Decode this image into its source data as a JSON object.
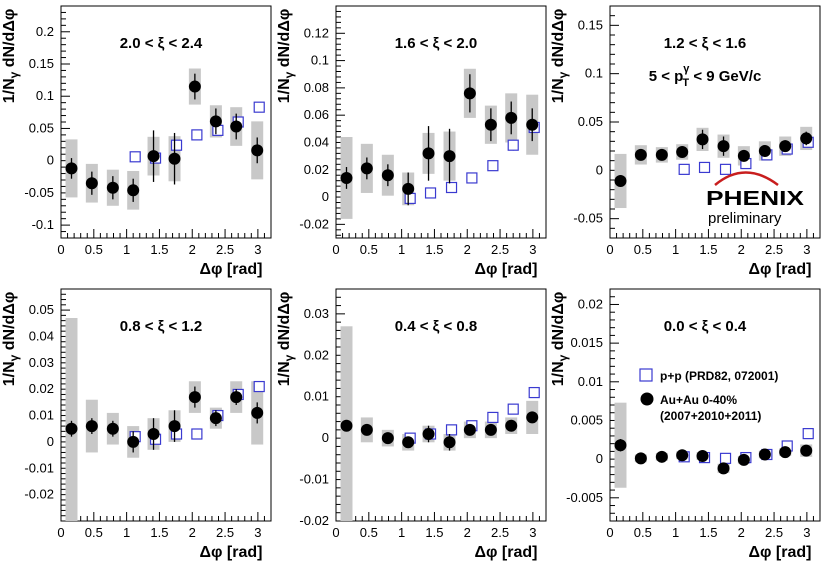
{
  "figure": {
    "logo_text": "PHENIX",
    "logo_sub": "preliminary"
  },
  "legend": {
    "pp_label": "p+p (PRD82, 072001)",
    "auau_label_line1": "Au+Au 0-40%",
    "auau_label_line2": "(2007+2010+2011)"
  },
  "chart_data": [
    {
      "type": "scatter",
      "title": "2.0 < ξ < 2.4",
      "xlabel": "Δφ [rad]",
      "ylabel": "1/Nγ dN/dΔφ",
      "xlim": [
        0,
        3.2
      ],
      "ylim": [
        -0.12,
        0.24
      ],
      "xticks": [
        0,
        0.5,
        1,
        1.5,
        2,
        2.5,
        3
      ],
      "yticks": [
        -0.1,
        -0.05,
        0,
        0.05,
        0.1,
        0.15,
        0.2
      ],
      "ytick_labels": [
        "-0.1",
        "-0.05",
        "0",
        "0.05",
        "0.1",
        "0.15",
        "0.2"
      ],
      "series": [
        {
          "name": "p+p (PRD82, 072001)",
          "marker": "open-square",
          "color": "#3a3ad0",
          "x": [
            1.1,
            1.41,
            1.73,
            2.04,
            2.36,
            2.67,
            2.99
          ],
          "y": [
            0.006,
            0.004,
            0.024,
            0.04,
            0.047,
            0.06,
            0.083
          ],
          "err": [
            0.004,
            0.004,
            0.004,
            0.004,
            0.005,
            0.006,
            0.006
          ]
        },
        {
          "name": "Au+Au 0-40%",
          "marker": "filled-circle",
          "color": "#000000",
          "x": [
            0.16,
            0.47,
            0.79,
            1.1,
            1.41,
            1.73,
            2.04,
            2.36,
            2.67,
            2.99
          ],
          "y": [
            -0.012,
            -0.035,
            -0.042,
            -0.046,
            0.007,
            0.003,
            0.115,
            0.061,
            0.053,
            0.016
          ],
          "err": [
            0.016,
            0.018,
            0.018,
            0.018,
            0.04,
            0.04,
            0.02,
            0.02,
            0.02,
            0.02
          ],
          "sys": [
            0.045,
            0.03,
            0.028,
            0.03,
            0.03,
            0.035,
            0.028,
            0.025,
            0.03,
            0.045
          ]
        }
      ]
    },
    {
      "type": "scatter",
      "title": "1.6 < ξ < 2.0",
      "xlabel": "Δφ [rad]",
      "ylabel": "1/Nγ dN/dΔφ",
      "xlim": [
        0,
        3.2
      ],
      "ylim": [
        -0.03,
        0.14
      ],
      "xticks": [
        0,
        0.5,
        1,
        1.5,
        2,
        2.5,
        3
      ],
      "yticks": [
        -0.02,
        0,
        0.02,
        0.04,
        0.06,
        0.08,
        0.1,
        0.12
      ],
      "ytick_labels": [
        "-0.02",
        "0",
        "0.02",
        "0.04",
        "0.06",
        "0.08",
        "0.1",
        "0.12"
      ],
      "series": [
        {
          "name": "p+p (PRD82, 072001)",
          "marker": "open-square",
          "color": "#3a3ad0",
          "x": [
            1.1,
            1.41,
            1.73,
            2.04,
            2.36,
            2.67,
            2.99
          ],
          "y": [
            -0.001,
            0.003,
            0.007,
            0.014,
            0.023,
            0.038,
            0.051
          ],
          "err": [
            0.003,
            0.003,
            0.003,
            0.003,
            0.003,
            0.004,
            0.004
          ]
        },
        {
          "name": "Au+Au 0-40%",
          "marker": "filled-circle",
          "color": "#000000",
          "x": [
            0.16,
            0.47,
            0.79,
            1.1,
            1.41,
            1.73,
            2.04,
            2.36,
            2.67,
            2.99
          ],
          "y": [
            0.014,
            0.021,
            0.016,
            0.006,
            0.032,
            0.03,
            0.076,
            0.053,
            0.058,
            0.053
          ],
          "err": [
            0.008,
            0.008,
            0.008,
            0.012,
            0.02,
            0.02,
            0.014,
            0.012,
            0.012,
            0.012
          ],
          "sys": [
            0.03,
            0.018,
            0.015,
            0.012,
            0.015,
            0.018,
            0.018,
            0.014,
            0.018,
            0.022
          ]
        }
      ]
    },
    {
      "type": "scatter",
      "title": "1.2 < ξ < 1.6",
      "subtitle": "5 < pγT < 9 GeV/c",
      "xlabel": "Δφ [rad]",
      "ylabel": "1/Nγ dN/dΔφ",
      "xlim": [
        0,
        3.2
      ],
      "ylim": [
        -0.07,
        0.17
      ],
      "xticks": [
        0,
        0.5,
        1,
        1.5,
        2,
        2.5,
        3
      ],
      "yticks": [
        -0.05,
        0,
        0.05,
        0.1,
        0.15
      ],
      "ytick_labels": [
        "-0.05",
        "0",
        "0.05",
        "0.1",
        "0.15"
      ],
      "series": [
        {
          "name": "p+p (PRD82, 072001)",
          "marker": "open-square",
          "color": "#3a3ad0",
          "x": [
            1.1,
            1.41,
            1.73,
            2.04,
            2.36,
            2.67,
            2.99
          ],
          "y": [
            0.001,
            0.003,
            0.001,
            0.007,
            0.016,
            0.022,
            0.029
          ],
          "err": [
            0.003,
            0.003,
            0.003,
            0.003,
            0.003,
            0.004,
            0.004
          ]
        },
        {
          "name": "Au+Au 0-40%",
          "marker": "filled-circle",
          "color": "#000000",
          "x": [
            0.16,
            0.47,
            0.79,
            1.1,
            1.41,
            1.73,
            2.04,
            2.36,
            2.67,
            2.99
          ],
          "y": [
            -0.011,
            0.016,
            0.016,
            0.019,
            0.032,
            0.025,
            0.015,
            0.02,
            0.025,
            0.033
          ],
          "err": [
            0.006,
            0.005,
            0.005,
            0.005,
            0.01,
            0.01,
            0.006,
            0.006,
            0.006,
            0.007
          ],
          "sys": [
            0.028,
            0.01,
            0.008,
            0.008,
            0.012,
            0.012,
            0.01,
            0.01,
            0.01,
            0.012
          ]
        }
      ]
    },
    {
      "type": "scatter",
      "title": "0.8 < ξ < 1.2",
      "xlabel": "Δφ [rad]",
      "ylabel": "1/Nγ dN/dΔφ",
      "xlim": [
        0,
        3.2
      ],
      "ylim": [
        -0.03,
        0.058
      ],
      "xticks": [
        0,
        0.5,
        1,
        1.5,
        2,
        2.5,
        3
      ],
      "yticks": [
        -0.02,
        -0.01,
        0,
        0.01,
        0.02,
        0.03,
        0.04,
        0.05
      ],
      "ytick_labels": [
        "-0.02",
        "-0.01",
        "0",
        "0.01",
        "0.02",
        "0.03",
        "0.04",
        "0.05"
      ],
      "series": [
        {
          "name": "p+p (PRD82, 072001)",
          "marker": "open-square",
          "color": "#3a3ad0",
          "x": [
            1.1,
            1.41,
            1.73,
            2.04,
            2.36,
            2.67,
            2.99
          ],
          "y": [
            0.002,
            0.001,
            0.003,
            0.003,
            0.01,
            0.018,
            0.021
          ],
          "err": [
            0.002,
            0.002,
            0.002,
            0.002,
            0.002,
            0.002,
            0.002
          ]
        },
        {
          "name": "Au+Au 0-40%",
          "marker": "filled-circle",
          "color": "#000000",
          "x": [
            0.16,
            0.47,
            0.79,
            1.1,
            1.41,
            1.73,
            2.04,
            2.36,
            2.67,
            2.99
          ],
          "y": [
            0.005,
            0.006,
            0.005,
            0.0,
            0.003,
            0.006,
            0.017,
            0.009,
            0.017,
            0.011
          ],
          "err": [
            0.003,
            0.003,
            0.003,
            0.004,
            0.006,
            0.006,
            0.004,
            0.003,
            0.003,
            0.004
          ],
          "sys": [
            0.042,
            0.01,
            0.006,
            0.006,
            0.006,
            0.006,
            0.006,
            0.004,
            0.006,
            0.012
          ]
        }
      ]
    },
    {
      "type": "scatter",
      "title": "0.4 < ξ < 0.8",
      "xlabel": "Δφ [rad]",
      "ylabel": "1/Nγ dN/dΔφ",
      "xlim": [
        0,
        3.2
      ],
      "ylim": [
        -0.02,
        0.036
      ],
      "xticks": [
        0,
        0.5,
        1,
        1.5,
        2,
        2.5,
        3
      ],
      "yticks": [
        -0.02,
        -0.01,
        0,
        0.01,
        0.02,
        0.03
      ],
      "ytick_labels": [
        "-0.02",
        "-0.01",
        "0",
        "0.01",
        "0.02",
        "0.03"
      ],
      "series": [
        {
          "name": "p+p (PRD82, 072001)",
          "marker": "open-square",
          "color": "#3a3ad0",
          "x": [
            1.1,
            1.41,
            1.73,
            2.04,
            2.36,
            2.67,
            2.99
          ],
          "y": [
            0.0,
            0.001,
            0.002,
            0.003,
            0.005,
            0.007,
            0.011
          ],
          "err": [
            0.001,
            0.001,
            0.001,
            0.001,
            0.001,
            0.001,
            0.001
          ]
        },
        {
          "name": "Au+Au 0-40%",
          "marker": "filled-circle",
          "color": "#000000",
          "x": [
            0.16,
            0.47,
            0.79,
            1.1,
            1.41,
            1.73,
            2.04,
            2.36,
            2.67,
            2.99
          ],
          "y": [
            0.003,
            0.002,
            0.0,
            -0.001,
            0.001,
            -0.001,
            0.002,
            0.002,
            0.003,
            0.005
          ],
          "err": [
            0.001,
            0.001,
            0.001,
            0.001,
            0.002,
            0.002,
            0.001,
            0.001,
            0.001,
            0.001
          ],
          "sys": [
            0.024,
            0.003,
            0.002,
            0.002,
            0.002,
            0.002,
            0.002,
            0.002,
            0.002,
            0.004
          ]
        }
      ]
    },
    {
      "type": "scatter",
      "title": "0.0 < ξ < 0.4",
      "xlabel": "Δφ [rad]",
      "ylabel": "1/Nγ dN/dΔφ",
      "xlim": [
        0,
        3.2
      ],
      "ylim": [
        -0.008,
        0.022
      ],
      "xticks": [
        0,
        0.5,
        1,
        1.5,
        2,
        2.5,
        3
      ],
      "yticks": [
        -0.005,
        0,
        0.005,
        0.01,
        0.015,
        0.02
      ],
      "ytick_labels": [
        "-0.005",
        "0",
        "0.005",
        "0.01",
        "0.015",
        "0.02"
      ],
      "series": [
        {
          "name": "p+p (PRD82, 072001)",
          "marker": "open-square",
          "color": "#3a3ad0",
          "x": [
            1.1,
            1.41,
            1.73,
            2.04,
            2.36,
            2.67,
            2.99
          ],
          "y": [
            0.0003,
            0.0002,
            0.0001,
            0.0002,
            0.0006,
            0.0017,
            0.0033
          ],
          "err": [
            0.0004,
            0.0004,
            0.0004,
            0.0004,
            0.0004,
            0.0004,
            0.0005
          ]
        },
        {
          "name": "Au+Au 0-40%",
          "marker": "filled-circle",
          "color": "#000000",
          "x": [
            0.16,
            0.47,
            0.79,
            1.1,
            1.41,
            1.73,
            2.04,
            2.36,
            2.67,
            2.99
          ],
          "y": [
            0.0018,
            0.0001,
            0.0003,
            0.0005,
            0.0004,
            -0.0012,
            -0.0001,
            0.0006,
            0.0009,
            0.0011
          ],
          "err": [
            0.0008,
            0.0003,
            0.0003,
            0.0004,
            0.0006,
            0.0006,
            0.0004,
            0.0003,
            0.0003,
            0.0004
          ],
          "sys": [
            0.0055,
            0.0005,
            0.0005,
            0.0005,
            0.0005,
            0.0006,
            0.0005,
            0.0005,
            0.0005,
            0.0008
          ]
        }
      ]
    }
  ]
}
